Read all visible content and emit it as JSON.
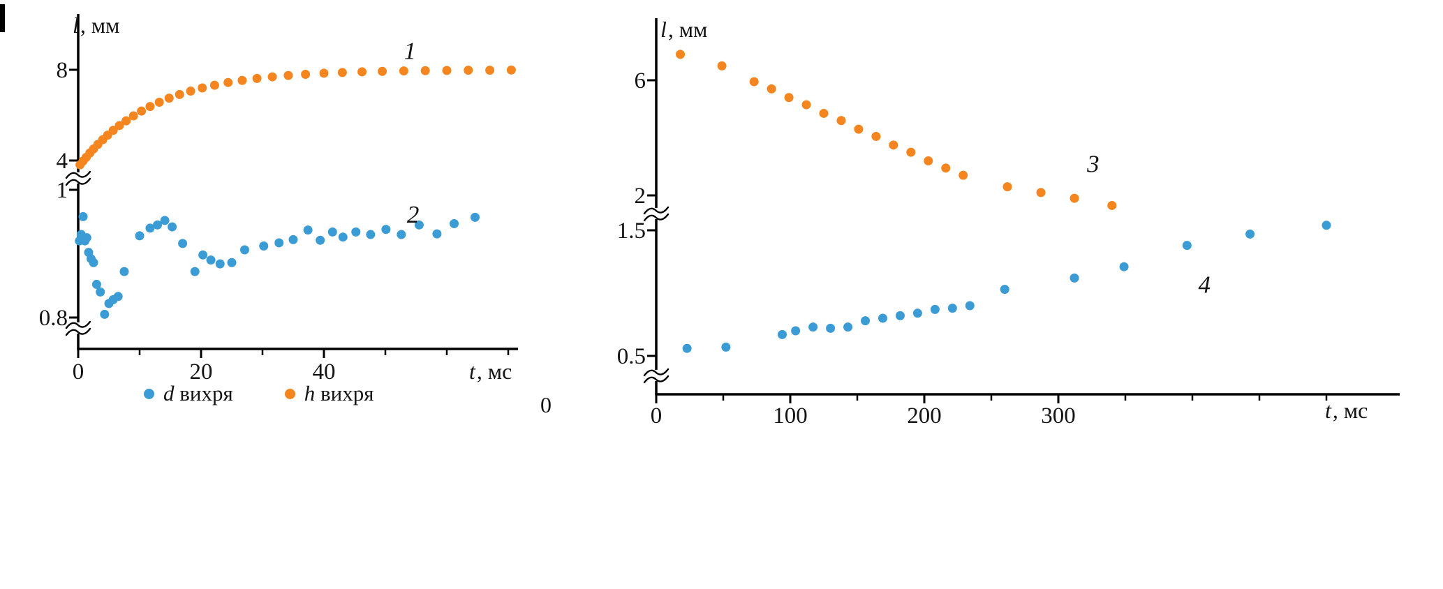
{
  "figure": {
    "background": "#ffffff",
    "stray_label": "0"
  },
  "colors": {
    "blue": "#3A9BD5",
    "orange": "#F5851F",
    "axis": "#000000",
    "text": "#141414"
  },
  "legend": {
    "items": [
      {
        "label": "d вихря",
        "symbol": "d",
        "text": " вихря",
        "color_key": "blue"
      },
      {
        "label": "h вихря",
        "symbol": "h",
        "text": " вихря",
        "color_key": "orange"
      }
    ]
  },
  "chart_data": [
    {
      "type": "scatter",
      "title": "",
      "xlabel": "t, мс",
      "xlabel_parts": {
        "italic": "t",
        "rest": ", мс"
      },
      "ylabel": "l, мм",
      "ylabel_parts": {
        "italic": "l",
        "rest": ", мм"
      },
      "axis_break": true,
      "grid": false,
      "x_range": [
        0,
        72
      ],
      "x_ticks": {
        "values": [
          0,
          20,
          40
        ],
        "labels": [
          "0",
          "20",
          "40"
        ]
      },
      "x_minor_ticks": [
        10,
        30,
        50,
        60,
        70
      ],
      "segments": {
        "upper": {
          "ylim": [
            3.5,
            9.3
          ],
          "tick_values": [
            4,
            8
          ],
          "tick_labels": [
            "4",
            "8"
          ]
        },
        "lower": {
          "ylim": [
            0.78,
            1.01
          ],
          "tick_values": [
            0.8,
            1
          ],
          "tick_labels": [
            "0.8",
            "1"
          ]
        }
      },
      "series": [
        {
          "name": "h вихря",
          "curve_label": "1",
          "curve_label_pos": {
            "t": 54,
            "v": 8.85
          },
          "color_key": "orange",
          "segment": "upper",
          "points": [
            [
              0.3,
              3.81
            ],
            [
              0.8,
              3.98
            ],
            [
              1.3,
              4.14
            ],
            [
              1.9,
              4.33
            ],
            [
              2.5,
              4.51
            ],
            [
              3.2,
              4.71
            ],
            [
              4,
              4.92
            ],
            [
              4.8,
              5.12
            ],
            [
              5.7,
              5.33
            ],
            [
              6.7,
              5.54
            ],
            [
              7.8,
              5.75
            ],
            [
              9,
              5.97
            ],
            [
              10.3,
              6.18
            ],
            [
              11.7,
              6.38
            ],
            [
              13.2,
              6.57
            ],
            [
              14.8,
              6.75
            ],
            [
              16.5,
              6.91
            ],
            [
              18.3,
              7.06
            ],
            [
              20.2,
              7.2
            ],
            [
              22.2,
              7.32
            ],
            [
              24.4,
              7.44
            ],
            [
              26.7,
              7.53
            ],
            [
              29.1,
              7.62
            ],
            [
              31.6,
              7.69
            ],
            [
              34.2,
              7.75
            ],
            [
              37,
              7.8
            ],
            [
              40,
              7.85
            ],
            [
              43,
              7.88
            ],
            [
              46.2,
              7.91
            ],
            [
              49.5,
              7.93
            ],
            [
              53,
              7.95
            ],
            [
              56.5,
              7.96
            ],
            [
              60,
              7.97
            ],
            [
              63.5,
              7.98
            ],
            [
              67,
              7.98
            ],
            [
              70.5,
              7.99
            ]
          ]
        },
        {
          "name": "d вихря",
          "curve_label": "2",
          "curve_label_pos": {
            "t": 54.5,
            "v": 0.962
          },
          "color_key": "blue",
          "segment": "lower",
          "points": [
            [
              0.2,
              0.92
            ],
            [
              0.5,
              0.93
            ],
            [
              0.8,
              0.958
            ],
            [
              1.1,
              0.92
            ],
            [
              1.4,
              0.925
            ],
            [
              1.7,
              0.902
            ],
            [
              2.1,
              0.892
            ],
            [
              2.5,
              0.886
            ],
            [
              3,
              0.852
            ],
            [
              3.6,
              0.84
            ],
            [
              4.3,
              0.805
            ],
            [
              5,
              0.822
            ],
            [
              5.7,
              0.828
            ],
            [
              6.5,
              0.833
            ],
            [
              7.5,
              0.872
            ],
            [
              10,
              0.928
            ],
            [
              11.7,
              0.94
            ],
            [
              12.9,
              0.945
            ],
            [
              14.1,
              0.952
            ],
            [
              15.3,
              0.942
            ],
            [
              17,
              0.916
            ],
            [
              19,
              0.872
            ],
            [
              20.3,
              0.898
            ],
            [
              21.6,
              0.89
            ],
            [
              23.1,
              0.884
            ],
            [
              25,
              0.886
            ],
            [
              27.1,
              0.906
            ],
            [
              30.2,
              0.912
            ],
            [
              32.7,
              0.917
            ],
            [
              35,
              0.922
            ],
            [
              37.4,
              0.937
            ],
            [
              39.4,
              0.921
            ],
            [
              41.4,
              0.934
            ],
            [
              43.1,
              0.926
            ],
            [
              45.2,
              0.934
            ],
            [
              47.6,
              0.93
            ],
            [
              50.1,
              0.938
            ],
            [
              52.6,
              0.93
            ],
            [
              55.5,
              0.945
            ],
            [
              58.4,
              0.931
            ],
            [
              61.2,
              0.947
            ],
            [
              64.6,
              0.957
            ]
          ]
        }
      ]
    },
    {
      "type": "scatter",
      "title": "",
      "xlabel": "t, мс",
      "xlabel_parts": {
        "italic": "t",
        "rest": ", мс"
      },
      "ylabel": "l, мм",
      "ylabel_parts": {
        "italic": "l",
        "rest": ", мм"
      },
      "axis_break": true,
      "grid": false,
      "x_range": [
        0,
        550
      ],
      "x_ticks": {
        "values": [
          0,
          100,
          200,
          300
        ],
        "labels": [
          "0",
          "100",
          "200",
          "300"
        ]
      },
      "x_minor_ticks": [
        50,
        150,
        250,
        350,
        400,
        450,
        500
      ],
      "segments": {
        "upper": {
          "ylim": [
            1.6,
            7.2
          ],
          "tick_values": [
            2,
            6
          ],
          "tick_labels": [
            "2",
            "6"
          ]
        },
        "lower": {
          "ylim": [
            0.35,
            1.6
          ],
          "tick_values": [
            0.5,
            1.5
          ],
          "tick_labels": [
            "0.5",
            "1.5"
          ]
        }
      },
      "series": [
        {
          "name": "h вихря",
          "curve_label": "3",
          "curve_label_pos": {
            "t": 326,
            "v": 3.1
          },
          "color_key": "orange",
          "segment": "upper",
          "points": [
            [
              18,
              6.9
            ],
            [
              49,
              6.5
            ],
            [
              73,
              5.95
            ],
            [
              86,
              5.7
            ],
            [
              99,
              5.4
            ],
            [
              112,
              5.15
            ],
            [
              125,
              4.85
            ],
            [
              138,
              4.6
            ],
            [
              151,
              4.3
            ],
            [
              164,
              4.05
            ],
            [
              177,
              3.75
            ],
            [
              190,
              3.5
            ],
            [
              203,
              3.2
            ],
            [
              216,
              2.95
            ],
            [
              229,
              2.7
            ],
            [
              262,
              2.3
            ],
            [
              287,
              2.1
            ],
            [
              312,
              1.9
            ],
            [
              340,
              1.65
            ]
          ]
        },
        {
          "name": "d вихря",
          "curve_label": "4",
          "curve_label_pos": {
            "t": 409,
            "v": 1.07
          },
          "color_key": "blue",
          "segment": "lower",
          "points": [
            [
              23,
              0.56
            ],
            [
              52,
              0.57
            ],
            [
              94,
              0.67
            ],
            [
              104,
              0.7
            ],
            [
              117,
              0.73
            ],
            [
              130,
              0.72
            ],
            [
              143,
              0.73
            ],
            [
              156,
              0.78
            ],
            [
              169,
              0.8
            ],
            [
              182,
              0.82
            ],
            [
              195,
              0.84
            ],
            [
              208,
              0.87
            ],
            [
              221,
              0.88
            ],
            [
              234,
              0.9
            ],
            [
              260,
              1.03
            ],
            [
              312,
              1.12
            ],
            [
              349,
              1.21
            ],
            [
              396,
              1.38
            ],
            [
              443,
              1.47
            ],
            [
              500,
              1.54
            ]
          ]
        }
      ]
    }
  ]
}
